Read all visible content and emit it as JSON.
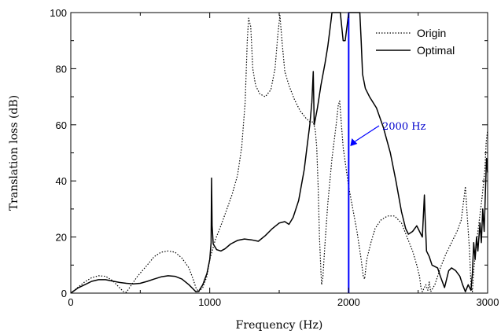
{
  "chart_data": {
    "type": "line",
    "xlabel": "Frequency (Hz)",
    "ylabel": "Translation loss (dB)",
    "xlim": [
      0,
      3000
    ],
    "ylim": [
      0,
      100
    ],
    "xticks": [
      "0",
      "1000",
      "2000",
      "3000"
    ],
    "yticks": [
      "0",
      "20",
      "40",
      "60",
      "80",
      "100"
    ],
    "grid": false,
    "legend_position": "top-right",
    "annotation": {
      "text": "2000 Hz",
      "x": 2000,
      "color": "#0000cc"
    },
    "series": [
      {
        "name": "Origin",
        "style": "dotted",
        "points": [
          [
            0,
            0
          ],
          [
            50,
            2
          ],
          [
            100,
            4
          ],
          [
            150,
            5.5
          ],
          [
            200,
            6.2
          ],
          [
            250,
            6
          ],
          [
            300,
            4.5
          ],
          [
            350,
            2
          ],
          [
            380,
            0.5
          ],
          [
            400,
            0.3
          ],
          [
            430,
            2.5
          ],
          [
            480,
            6
          ],
          [
            550,
            10
          ],
          [
            600,
            13
          ],
          [
            650,
            14.6
          ],
          [
            700,
            15
          ],
          [
            750,
            14.6
          ],
          [
            800,
            12.5
          ],
          [
            850,
            9
          ],
          [
            880,
            5
          ],
          [
            900,
            2
          ],
          [
            920,
            0.5
          ],
          [
            950,
            2
          ],
          [
            980,
            6
          ],
          [
            1000,
            12
          ],
          [
            1040,
            19
          ],
          [
            1080,
            24
          ],
          [
            1120,
            29.5
          ],
          [
            1160,
            35
          ],
          [
            1200,
            42
          ],
          [
            1230,
            52
          ],
          [
            1255,
            68
          ],
          [
            1270,
            90
          ],
          [
            1280,
            98
          ],
          [
            1295,
            95
          ],
          [
            1310,
            80
          ],
          [
            1330,
            74
          ],
          [
            1360,
            71
          ],
          [
            1400,
            70
          ],
          [
            1440,
            72.5
          ],
          [
            1470,
            80
          ],
          [
            1490,
            92
          ],
          [
            1505,
            99
          ],
          [
            1520,
            90
          ],
          [
            1540,
            79
          ],
          [
            1570,
            74
          ],
          [
            1610,
            69
          ],
          [
            1650,
            65
          ],
          [
            1690,
            62.5
          ],
          [
            1720,
            61
          ],
          [
            1745,
            61
          ],
          [
            1760,
            58
          ],
          [
            1770,
            52
          ],
          [
            1780,
            38
          ],
          [
            1790,
            20
          ],
          [
            1800,
            8
          ],
          [
            1805,
            3
          ],
          [
            1815,
            6
          ],
          [
            1830,
            18
          ],
          [
            1850,
            32
          ],
          [
            1880,
            48
          ],
          [
            1910,
            60
          ],
          [
            1925,
            67
          ],
          [
            1935,
            68.5
          ],
          [
            1945,
            62
          ],
          [
            1960,
            52
          ],
          [
            1980,
            45
          ],
          [
            2000,
            38
          ],
          [
            2030,
            30
          ],
          [
            2060,
            22
          ],
          [
            2090,
            12
          ],
          [
            2105,
            6
          ],
          [
            2115,
            5
          ],
          [
            2130,
            12
          ],
          [
            2160,
            18
          ],
          [
            2190,
            23
          ],
          [
            2230,
            26
          ],
          [
            2280,
            27.5
          ],
          [
            2330,
            27.5
          ],
          [
            2380,
            25
          ],
          [
            2420,
            20
          ],
          [
            2460,
            15
          ],
          [
            2490,
            10
          ],
          [
            2510,
            6
          ],
          [
            2520,
            2
          ],
          [
            2530,
            0.5
          ],
          [
            2555,
            3
          ],
          [
            2570,
            1
          ],
          [
            2580,
            4
          ],
          [
            2590,
            0.5
          ],
          [
            2620,
            3
          ],
          [
            2660,
            9
          ],
          [
            2700,
            14
          ],
          [
            2740,
            18
          ],
          [
            2780,
            22
          ],
          [
            2810,
            26
          ],
          [
            2830,
            34
          ],
          [
            2840,
            38
          ],
          [
            2850,
            30
          ],
          [
            2870,
            15
          ],
          [
            2880,
            3
          ],
          [
            2890,
            0.5
          ],
          [
            2900,
            8
          ],
          [
            2920,
            18
          ],
          [
            2940,
            26
          ],
          [
            2960,
            34
          ],
          [
            2980,
            44
          ],
          [
            2990,
            54
          ],
          [
            3000,
            58
          ]
        ]
      },
      {
        "name": "Optimal",
        "style": "solid",
        "points": [
          [
            0,
            0
          ],
          [
            50,
            1.8
          ],
          [
            100,
            3
          ],
          [
            150,
            4.2
          ],
          [
            200,
            4.8
          ],
          [
            250,
            4.8
          ],
          [
            300,
            4.3
          ],
          [
            350,
            3.8
          ],
          [
            400,
            3.5
          ],
          [
            450,
            3.3
          ],
          [
            500,
            3.5
          ],
          [
            550,
            4.2
          ],
          [
            600,
            5
          ],
          [
            650,
            5.8
          ],
          [
            700,
            6.2
          ],
          [
            750,
            6
          ],
          [
            800,
            5
          ],
          [
            850,
            3
          ],
          [
            880,
            1.5
          ],
          [
            900,
            0.5
          ],
          [
            920,
            0.6
          ],
          [
            950,
            3
          ],
          [
            980,
            7
          ],
          [
            1000,
            12
          ],
          [
            1010,
            18
          ],
          [
            1013,
            41
          ],
          [
            1017,
            24
          ],
          [
            1025,
            17.5
          ],
          [
            1050,
            15.5
          ],
          [
            1080,
            15
          ],
          [
            1110,
            15.8
          ],
          [
            1150,
            17.5
          ],
          [
            1200,
            18.8
          ],
          [
            1250,
            19.3
          ],
          [
            1300,
            19
          ],
          [
            1350,
            18.5
          ],
          [
            1400,
            20.5
          ],
          [
            1450,
            23
          ],
          [
            1500,
            25
          ],
          [
            1540,
            25.5
          ],
          [
            1570,
            24.5
          ],
          [
            1600,
            27
          ],
          [
            1640,
            33
          ],
          [
            1680,
            44
          ],
          [
            1700,
            52
          ],
          [
            1720,
            60
          ],
          [
            1735,
            68
          ],
          [
            1745,
            79
          ],
          [
            1752,
            60
          ],
          [
            1760,
            62
          ],
          [
            1775,
            66
          ],
          [
            1800,
            74
          ],
          [
            1830,
            82
          ],
          [
            1850,
            88
          ],
          [
            1870,
            96
          ],
          [
            1880,
            100
          ],
          [
            1900,
            100
          ],
          [
            1940,
            100
          ],
          [
            1950,
            95
          ],
          [
            1960,
            90
          ],
          [
            1975,
            90
          ],
          [
            1990,
            96
          ],
          [
            2000,
            100
          ],
          [
            2020,
            100
          ],
          [
            2060,
            100
          ],
          [
            2080,
            100
          ],
          [
            2090,
            90
          ],
          [
            2100,
            78
          ],
          [
            2120,
            73
          ],
          [
            2150,
            70
          ],
          [
            2200,
            66
          ],
          [
            2250,
            59
          ],
          [
            2300,
            50
          ],
          [
            2340,
            40
          ],
          [
            2380,
            29
          ],
          [
            2410,
            23
          ],
          [
            2430,
            21
          ],
          [
            2460,
            22
          ],
          [
            2490,
            24
          ],
          [
            2510,
            22
          ],
          [
            2530,
            20
          ],
          [
            2545,
            35
          ],
          [
            2550,
            27
          ],
          [
            2560,
            15
          ],
          [
            2580,
            13
          ],
          [
            2600,
            10
          ],
          [
            2640,
            9
          ],
          [
            2660,
            6
          ],
          [
            2690,
            2
          ],
          [
            2700,
            4
          ],
          [
            2720,
            8
          ],
          [
            2740,
            9
          ],
          [
            2770,
            8
          ],
          [
            2800,
            6
          ],
          [
            2820,
            3
          ],
          [
            2840,
            0.5
          ],
          [
            2860,
            3
          ],
          [
            2880,
            1
          ],
          [
            2890,
            7
          ],
          [
            2900,
            18
          ],
          [
            2910,
            12
          ],
          [
            2920,
            20
          ],
          [
            2930,
            15
          ],
          [
            2945,
            25
          ],
          [
            2955,
            18
          ],
          [
            2965,
            30
          ],
          [
            2975,
            22
          ],
          [
            2985,
            38
          ],
          [
            2992,
            48
          ],
          [
            3000,
            43
          ]
        ]
      }
    ]
  }
}
